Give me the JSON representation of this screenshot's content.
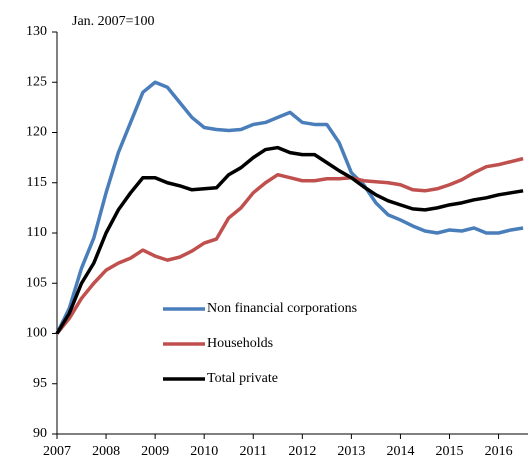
{
  "chart_data": {
    "type": "line",
    "annotation": "Jan. 2007=100",
    "x": [
      2007,
      2007.25,
      2007.5,
      2007.75,
      2008,
      2008.25,
      2008.5,
      2008.75,
      2009,
      2009.25,
      2009.5,
      2009.75,
      2010,
      2010.25,
      2010.5,
      2010.75,
      2011,
      2011.25,
      2011.5,
      2011.75,
      2012,
      2012.25,
      2012.5,
      2012.75,
      2013,
      2013.25,
      2013.5,
      2013.75,
      2014,
      2014.25,
      2014.5,
      2014.75,
      2015,
      2015.25,
      2015.5,
      2015.75,
      2016,
      2016.25,
      2016.5
    ],
    "series": [
      {
        "name": "Non financial corporations",
        "color": "#4a7ebb",
        "values": [
          100,
          102.5,
          106.5,
          109.5,
          114,
          118,
          121,
          124,
          125,
          124.5,
          123,
          121.5,
          120.5,
          120.3,
          120.2,
          120.3,
          120.8,
          121,
          121.5,
          122,
          121,
          120.8,
          120.8,
          119,
          116,
          114.8,
          113,
          111.8,
          111.3,
          110.7,
          110.2,
          110,
          110.3,
          110.2,
          110.5,
          110,
          110,
          110.3,
          110.5
        ]
      },
      {
        "name": "Households",
        "color": "#c0504d",
        "values": [
          100,
          101.5,
          103.5,
          105,
          106.3,
          107,
          107.5,
          108.3,
          107.7,
          107.3,
          107.6,
          108.2,
          109,
          109.4,
          111.5,
          112.5,
          114,
          115,
          115.8,
          115.5,
          115.2,
          115.2,
          115.4,
          115.4,
          115.5,
          115.2,
          115.1,
          115,
          114.8,
          114.3,
          114.2,
          114.4,
          114.8,
          115.3,
          116,
          116.6,
          116.8,
          117.1,
          117.4
        ]
      },
      {
        "name": "Total private",
        "color": "#000000",
        "values": [
          100,
          102,
          105,
          107,
          110,
          112.3,
          114,
          115.5,
          115.5,
          115,
          114.7,
          114.3,
          114.4,
          114.5,
          115.8,
          116.5,
          117.5,
          118.3,
          118.5,
          118,
          117.8,
          117.8,
          117,
          116.2,
          115.5,
          114.6,
          113.8,
          113.2,
          112.8,
          112.4,
          112.3,
          112.5,
          112.8,
          113,
          113.3,
          113.5,
          113.8,
          114,
          114.2
        ]
      }
    ],
    "xlim": [
      2007,
      2016.6
    ],
    "xticks": [
      2007,
      2008,
      2009,
      2010,
      2011,
      2012,
      2013,
      2014,
      2015,
      2016
    ],
    "ylim": [
      90,
      130
    ],
    "yticks": [
      90,
      95,
      100,
      105,
      110,
      115,
      120,
      125,
      130
    ],
    "grid": false
  }
}
